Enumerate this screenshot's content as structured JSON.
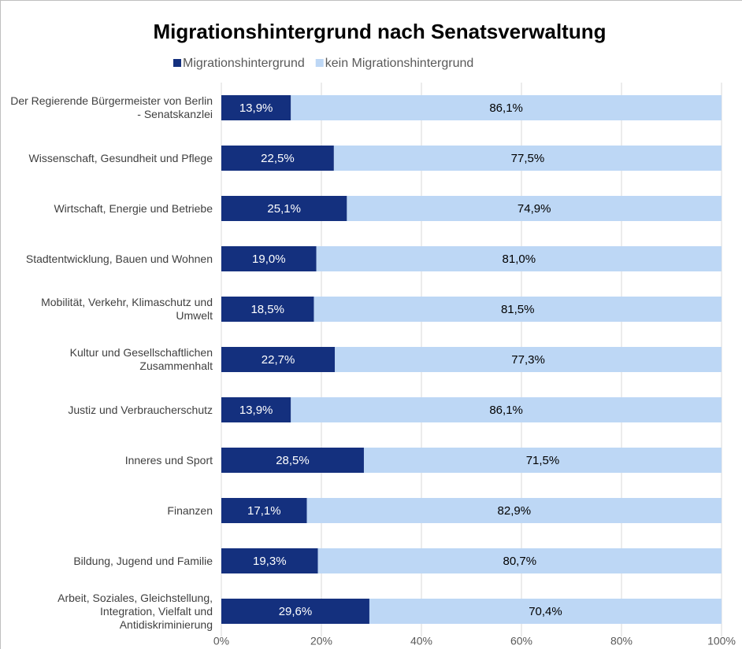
{
  "chart_data": {
    "type": "stacked_barh",
    "title": "Migrationshintergrund nach Senatsverwaltung",
    "categories": [
      "Der Regierende Bürgermeister von Berlin - Senatskanzlei",
      "Wissenschaft, Gesundheit und Pflege",
      "Wirtschaft, Energie und Betriebe",
      "Stadtentwicklung, Bauen und Wohnen",
      "Mobilität, Verkehr, Klimaschutz und Umwelt",
      "Kultur und Gesellschaftlichen Zusammenhalt",
      "Justiz und Verbraucherschutz",
      "Inneres und Sport",
      "Finanzen",
      "Bildung, Jugend und Familie",
      "Arbeit, Soziales, Gleichstellung, Integration, Vielfalt und Antidiskriminierung"
    ],
    "series": [
      {
        "name": "Migrationshintergrund",
        "color": "#14307e",
        "label_color": "#ffffff",
        "values": [
          13.9,
          22.5,
          25.1,
          19.0,
          18.5,
          22.7,
          13.9,
          28.5,
          17.1,
          19.3,
          29.6
        ],
        "value_labels": [
          "13,9%",
          "22,5%",
          "25,1%",
          "19,0%",
          "18,5%",
          "22,7%",
          "13,9%",
          "28,5%",
          "17,1%",
          "19,3%",
          "29,6%"
        ]
      },
      {
        "name": "kein Migrationshintergrund",
        "color": "#bdd7f5",
        "label_color": "#000000",
        "values": [
          86.1,
          77.5,
          74.9,
          81.0,
          81.5,
          77.3,
          86.1,
          71.5,
          82.9,
          80.7,
          70.4
        ],
        "value_labels": [
          "86,1%",
          "77,5%",
          "74,9%",
          "81,0%",
          "81,5%",
          "77,3%",
          "86,1%",
          "71,5%",
          "82,9%",
          "80,7%",
          "70,4%"
        ]
      }
    ],
    "xlim": [
      0,
      100
    ],
    "xticks": [
      {
        "value": 0,
        "label": "0%"
      },
      {
        "value": 20,
        "label": "20%"
      },
      {
        "value": 40,
        "label": "40%"
      },
      {
        "value": 60,
        "label": "60%"
      },
      {
        "value": 80,
        "label": "80%"
      },
      {
        "value": 100,
        "label": "100%"
      }
    ],
    "grid": true,
    "legend": "top"
  }
}
